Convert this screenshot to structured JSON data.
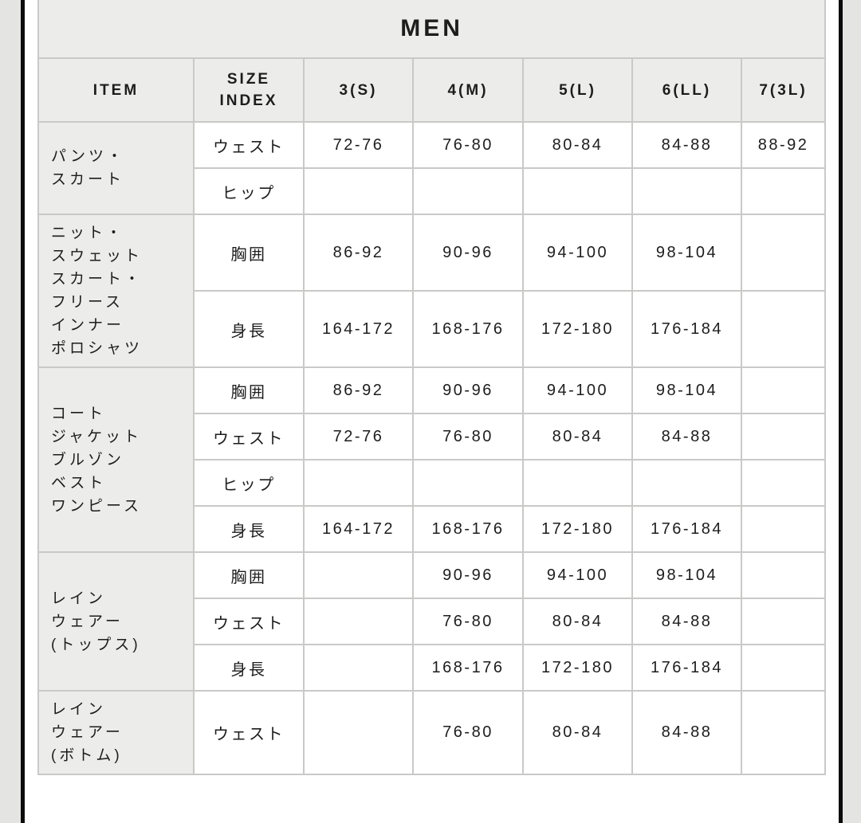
{
  "colors": {
    "page_bg": "#FFFFFF",
    "gutter_bg": "#E4E4E2",
    "frame_bar": "#0B0B0B",
    "header_cell_bg": "#ECECEA",
    "data_cell_bg": "#FFFFFF",
    "table_border": "#C9C9C8",
    "text": "#1D1D1D"
  },
  "table": {
    "title": "MEN",
    "columns": [
      {
        "lines": [
          "ITEM"
        ]
      },
      {
        "lines": [
          "SIZE",
          "INDEX"
        ]
      },
      {
        "lines": [
          "3(S)"
        ]
      },
      {
        "lines": [
          "4(M)"
        ]
      },
      {
        "lines": [
          "5(L)"
        ]
      },
      {
        "lines": [
          "6(LL)"
        ]
      },
      {
        "lines": [
          "7(3L)"
        ]
      }
    ],
    "groups": [
      {
        "item_lines": [
          "パンツ・",
          "スカート"
        ],
        "rows": [
          {
            "label": "ウェスト",
            "values": [
              "72-76",
              "76-80",
              "80-84",
              "84-88",
              "88-92"
            ]
          },
          {
            "label": "ヒップ",
            "values": [
              "",
              "",
              "",
              "",
              ""
            ]
          }
        ]
      },
      {
        "item_lines": [
          "ニット・",
          "スウェット",
          "スカート・",
          "フリース",
          "インナー",
          "ポロシャツ"
        ],
        "rows": [
          {
            "label": "胸囲",
            "values": [
              "86-92",
              "90-96",
              "94-100",
              "98-104",
              ""
            ]
          },
          {
            "label": "身長",
            "values": [
              "164-172",
              "168-176",
              "172-180",
              "176-184",
              ""
            ]
          }
        ]
      },
      {
        "item_lines": [
          "コート",
          "ジャケット",
          "ブルゾン",
          "ベスト",
          "ワンピース"
        ],
        "rows": [
          {
            "label": "胸囲",
            "values": [
              "86-92",
              "90-96",
              "94-100",
              "98-104",
              ""
            ]
          },
          {
            "label": "ウェスト",
            "values": [
              "72-76",
              "76-80",
              "80-84",
              "84-88",
              ""
            ]
          },
          {
            "label": "ヒップ",
            "values": [
              "",
              "",
              "",
              "",
              ""
            ]
          },
          {
            "label": "身長",
            "values": [
              "164-172",
              "168-176",
              "172-180",
              "176-184",
              ""
            ]
          }
        ]
      },
      {
        "item_lines": [
          "レイン",
          "ウェアー",
          "(トップス)"
        ],
        "rows": [
          {
            "label": "胸囲",
            "values": [
              "",
              "90-96",
              "94-100",
              "98-104",
              ""
            ]
          },
          {
            "label": "ウェスト",
            "values": [
              "",
              "76-80",
              "80-84",
              "84-88",
              ""
            ]
          },
          {
            "label": "身長",
            "values": [
              "",
              "168-176",
              "172-180",
              "176-184",
              ""
            ]
          }
        ]
      },
      {
        "item_lines": [
          "レイン",
          "ウェアー",
          "(ボトム)"
        ],
        "rows": [
          {
            "label": "ウェスト",
            "values": [
              "",
              "76-80",
              "80-84",
              "84-88",
              ""
            ]
          }
        ]
      }
    ]
  }
}
